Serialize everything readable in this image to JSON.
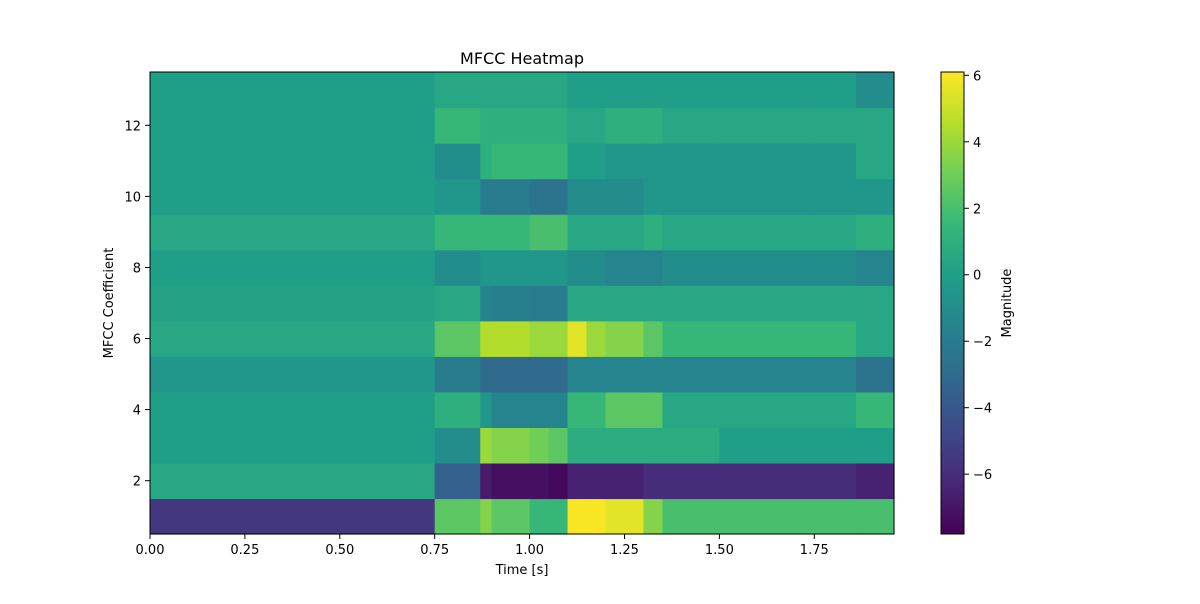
{
  "chart_data": {
    "type": "heatmap",
    "title": "MFCC Heatmap",
    "xlabel": "Time [s]",
    "ylabel": "MFCC Coefficient",
    "xlim": [
      0,
      1.96
    ],
    "ylim": [
      0.5,
      13.5
    ],
    "x_ticks": [
      0,
      0.25,
      0.5,
      0.75,
      1.0,
      1.25,
      1.5,
      1.75
    ],
    "x_tick_labels": [
      "0.00",
      "0.25",
      "0.50",
      "0.75",
      "1.00",
      "1.25",
      "1.50",
      "1.75"
    ],
    "y_ticks": [
      2,
      4,
      6,
      8,
      10,
      12
    ],
    "y_tick_labels": [
      "2",
      "4",
      "6",
      "8",
      "10",
      "12"
    ],
    "coefficients": [
      1,
      2,
      3,
      4,
      5,
      6,
      7,
      8,
      9,
      10,
      11,
      12,
      13
    ],
    "time_segments": [
      0,
      0.5,
      0.75,
      0.83,
      0.87,
      0.9,
      1.0,
      1.05,
      1.1,
      1.15,
      1.2,
      1.3,
      1.35,
      1.5,
      1.75,
      1.86,
      1.96
    ],
    "values": [
      [
        -5.5,
        -5.5,
        2.5,
        2.5,
        3.5,
        2.5,
        1.5,
        1.5,
        6.0,
        6.0,
        5.5,
        3.5,
        2.0,
        2.0,
        2.0,
        2.0
      ],
      [
        0.5,
        0.5,
        -3.5,
        -3.5,
        -6.8,
        -7.2,
        -7.2,
        -7.5,
        -6.5,
        -6.5,
        -6.5,
        -6.0,
        -6.0,
        -6.0,
        -6.0,
        -6.5
      ],
      [
        0.0,
        0.0,
        -1.0,
        -1.0,
        4.0,
        3.5,
        3.0,
        2.5,
        0.8,
        0.8,
        0.8,
        0.8,
        0.8,
        0.0,
        0.0,
        0.0
      ],
      [
        0.0,
        0.0,
        1.0,
        1.0,
        -0.5,
        -1.5,
        -1.5,
        -1.5,
        1.5,
        1.5,
        2.5,
        2.5,
        0.5,
        0.5,
        0.5,
        1.5
      ],
      [
        -0.5,
        -0.5,
        -2.0,
        -2.0,
        -3.0,
        -3.0,
        -3.0,
        -3.0,
        -1.5,
        -1.5,
        -1.5,
        -1.5,
        -1.5,
        -1.5,
        -1.5,
        -2.5
      ],
      [
        0.5,
        0.5,
        2.5,
        2.5,
        4.5,
        4.5,
        4.0,
        4.0,
        5.5,
        4.0,
        3.5,
        2.5,
        1.5,
        1.5,
        1.5,
        0.5
      ],
      [
        0.2,
        0.2,
        0.5,
        0.5,
        -1.5,
        -1.8,
        -2.0,
        -2.0,
        0.5,
        0.5,
        0.5,
        0.5,
        0.5,
        0.5,
        0.5,
        0.5
      ],
      [
        0.0,
        0.0,
        -1.0,
        -1.0,
        -0.5,
        -0.5,
        -0.5,
        -0.5,
        -1.0,
        -1.0,
        -1.5,
        -1.5,
        -1.0,
        -1.0,
        -1.0,
        -1.5
      ],
      [
        0.5,
        0.5,
        1.5,
        1.5,
        1.5,
        1.5,
        2.0,
        2.0,
        0.5,
        0.5,
        0.5,
        1.0,
        0.5,
        0.5,
        0.5,
        1.0
      ],
      [
        0.0,
        0.0,
        -0.5,
        -0.5,
        -2.0,
        -2.0,
        -2.5,
        -2.5,
        -1.0,
        -1.0,
        -1.0,
        -0.5,
        -0.5,
        -0.5,
        -0.5,
        -0.5
      ],
      [
        0.0,
        0.0,
        -1.0,
        -1.0,
        1.0,
        1.5,
        1.5,
        1.5,
        0.0,
        0.0,
        -0.5,
        -0.5,
        -0.5,
        -0.5,
        -0.5,
        0.5
      ],
      [
        0.0,
        0.0,
        1.5,
        1.5,
        1.0,
        1.0,
        1.0,
        1.0,
        0.5,
        0.5,
        1.0,
        1.0,
        0.5,
        0.5,
        0.5,
        0.5
      ],
      [
        0.0,
        0.0,
        0.5,
        0.5,
        0.5,
        0.5,
        0.5,
        0.5,
        0.0,
        0.0,
        0.0,
        0.0,
        0.0,
        0.0,
        0.0,
        -1.0
      ]
    ],
    "colorbar": {
      "label": "Magnitude",
      "vmin": -7.8,
      "vmax": 6.1,
      "ticks": [
        -6,
        -4,
        -2,
        0,
        2,
        4,
        6
      ],
      "tick_labels": [
        "−6",
        "−4",
        "−2",
        "0",
        "2",
        "4",
        "6"
      ],
      "colormap": "viridis"
    },
    "colormap_stops": [
      "#440154",
      "#482878",
      "#3e4989",
      "#31688e",
      "#26828e",
      "#1f9e89",
      "#35b779",
      "#6ece58",
      "#b5de2b",
      "#fde725"
    ]
  }
}
